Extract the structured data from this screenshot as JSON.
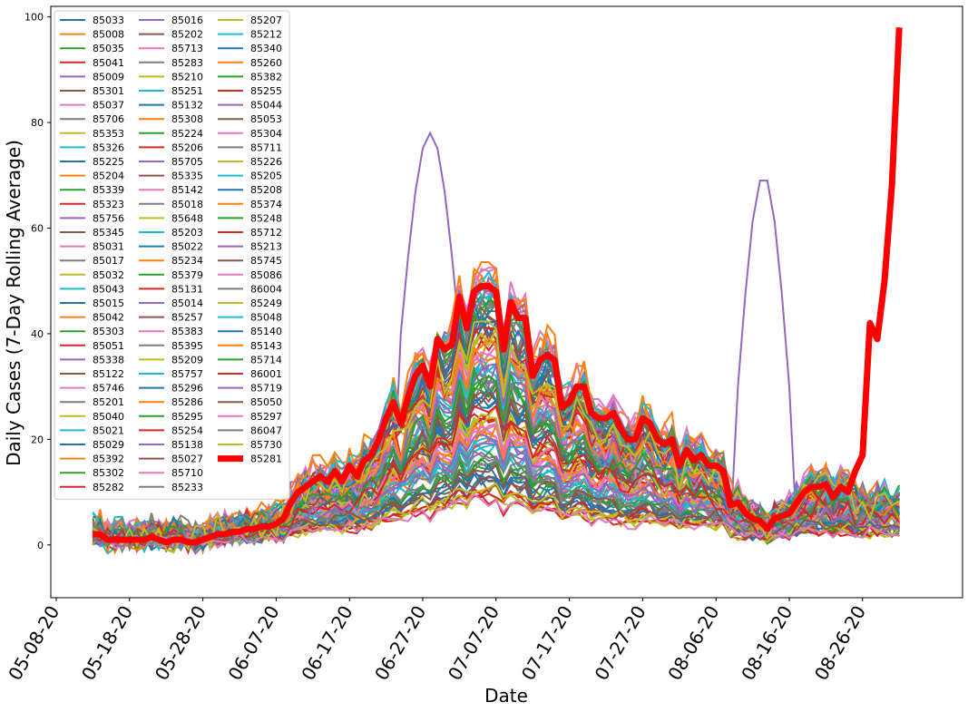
{
  "chart_data": {
    "type": "line",
    "title": "",
    "xlabel": "Date",
    "ylabel": "Daily Cases (7-Day Rolling Average)",
    "x_tick_labels": [
      "05-08-20",
      "05-18-20",
      "05-28-20",
      "06-07-20",
      "06-17-20",
      "06-27-20",
      "07-07-20",
      "07-17-20",
      "07-27-20",
      "08-06-20",
      "08-16-20",
      "08-26-20"
    ],
    "x_start": "05-13-20",
    "x_end": "09-04-20",
    "ylim": [
      -10,
      102
    ],
    "yticks": [
      0,
      20,
      40,
      60,
      80,
      100
    ],
    "grid": false,
    "legend_position": "top-left",
    "legend_columns": 3,
    "highlight_series": "85281",
    "highlight_color": "#ff0000",
    "highlight_values": [
      2,
      2,
      1,
      1,
      1,
      1,
      1,
      1,
      1.5,
      1,
      0.5,
      1,
      1,
      0.5,
      0.5,
      1,
      1.5,
      2,
      2,
      2.5,
      2.5,
      3,
      3,
      3.5,
      3.5,
      4,
      5,
      8,
      10,
      11,
      12,
      13,
      12,
      14,
      12,
      15,
      13,
      16,
      17,
      20,
      24,
      27,
      23,
      28,
      32,
      34,
      30,
      39,
      37,
      38,
      47,
      41,
      48,
      49,
      49,
      48,
      37,
      46,
      43,
      43,
      32,
      35,
      36,
      35,
      26,
      27,
      30,
      30,
      25,
      24,
      24,
      25,
      22,
      20,
      20,
      24,
      23,
      20,
      19,
      20,
      15,
      18,
      16,
      17,
      15,
      15,
      14,
      7.5,
      8,
      6,
      5,
      4.5,
      3,
      5,
      5.5,
      6,
      8,
      10,
      11,
      11,
      11.5,
      9,
      11,
      10,
      14,
      17,
      42,
      39,
      50,
      68,
      98
    ],
    "series_names": [
      "85033",
      "85008",
      "85035",
      "85041",
      "85009",
      "85301",
      "85037",
      "85706",
      "85353",
      "85326",
      "85225",
      "85204",
      "85339",
      "85323",
      "85756",
      "85345",
      "85031",
      "85017",
      "85032",
      "85043",
      "85015",
      "85042",
      "85303",
      "85051",
      "85338",
      "85122",
      "85746",
      "85201",
      "85040",
      "85021",
      "85029",
      "85392",
      "85302",
      "85282",
      "85016",
      "85202",
      "85713",
      "85283",
      "85210",
      "85251",
      "85132",
      "85308",
      "85224",
      "85206",
      "85705",
      "85335",
      "85142",
      "85018",
      "85648",
      "85203",
      "85022",
      "85234",
      "85379",
      "85131",
      "85014",
      "85257",
      "85383",
      "85395",
      "85209",
      "85757",
      "85296",
      "85286",
      "85295",
      "85254",
      "85138",
      "85027",
      "85710",
      "85233",
      "85207",
      "85212",
      "85340",
      "85260",
      "85382",
      "85255",
      "85044",
      "85053",
      "85304",
      "85711",
      "85226",
      "85205",
      "85208",
      "85374",
      "85248",
      "85712",
      "85213",
      "85745",
      "85086",
      "86004",
      "85249",
      "85048",
      "85140",
      "85143",
      "85714",
      "86001",
      "85719",
      "85050",
      "85297",
      "86047",
      "85730",
      "85281"
    ],
    "colors": {
      "palette": [
        "#1f77b4",
        "#ff7f0e",
        "#2ca02c",
        "#d62728",
        "#9467bd",
        "#8c564b",
        "#e377c2",
        "#7f7f7f",
        "#bcbd22",
        "#17becf"
      ]
    }
  }
}
